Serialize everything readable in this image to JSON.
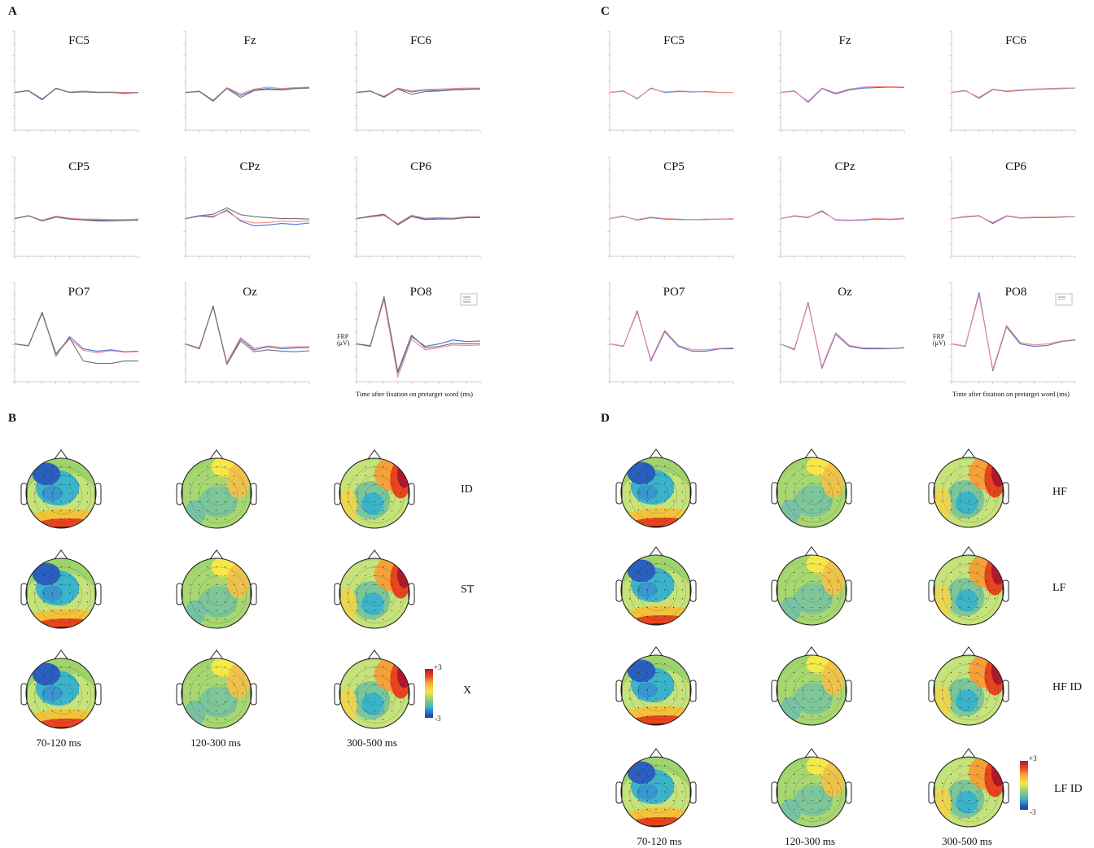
{
  "panels": {
    "A": {
      "label": "A",
      "electrodes": [
        "FC5",
        "Fz",
        "FC6",
        "CP5",
        "CPz",
        "CP6",
        "PO7",
        "Oz",
        "PO8"
      ],
      "y_label": "FRP (μV)",
      "x_label": "Time after fixation on pretarget word (ms)"
    },
    "B": {
      "label": "B",
      "conditions": [
        "ID",
        "ST",
        "X"
      ],
      "time_windows": [
        "70-120 ms",
        "120-300 ms",
        "300-500 ms"
      ],
      "colorbar": {
        "max": "+3",
        "min": "-3"
      }
    },
    "C": {
      "label": "C",
      "electrodes": [
        "FC5",
        "Fz",
        "FC6",
        "CP5",
        "CPz",
        "CP6",
        "PO7",
        "Oz",
        "PO8"
      ],
      "y_label": "FRP (μV)",
      "x_label": "Time after fixation on pretarget word (ms)"
    },
    "D": {
      "label": "D",
      "conditions": [
        "HF",
        "LF",
        "HF ID",
        "LF ID"
      ],
      "time_windows": [
        "70-120 ms",
        "120-300 ms",
        "300-500 ms"
      ],
      "colorbar": {
        "max": "+3",
        "min": "-3"
      }
    }
  },
  "colors": {
    "series_blue": "#4a6fd8",
    "series_red": "#f08a8a",
    "series_gray": "#707070",
    "head_outline": "#222222"
  },
  "chart_data": [
    {
      "type": "line",
      "panel": "A",
      "x": [
        -0.1,
        0.0,
        0.1,
        0.2,
        0.3,
        0.4,
        0.5,
        0.6,
        0.7,
        0.8
      ],
      "xlim": [
        -0.1,
        0.8
      ],
      "series_colors": [
        "#4a6fd8",
        "#f08a8a",
        "#707070"
      ],
      "plots": [
        {
          "title": "FC5",
          "series": [
            {
              "values": [
                0,
                0.3,
                -1.5,
                0.8,
                0,
                0.2,
                0,
                0.1,
                -0.1,
                0
              ]
            },
            {
              "values": [
                0,
                0.3,
                -1.3,
                0.7,
                0.1,
                0.3,
                0.1,
                0.1,
                0,
                0
              ]
            },
            {
              "values": [
                0,
                0.4,
                -1.4,
                0.9,
                0,
                0.1,
                0,
                0,
                -0.2,
                0
              ]
            }
          ]
        },
        {
          "title": "Fz",
          "series": [
            {
              "values": [
                0,
                0.2,
                -1.8,
                0.9,
                -0.6,
                0.5,
                0.8,
                0.6,
                0.9,
                1
              ]
            },
            {
              "values": [
                0,
                0.3,
                -1.6,
                1,
                -0.3,
                0.7,
                1.1,
                0.8,
                1,
                1.1
              ]
            },
            {
              "values": [
                0,
                0.2,
                -1.7,
                0.8,
                -1.0,
                0.4,
                0.6,
                0.5,
                0.8,
                0.9
              ]
            }
          ]
        },
        {
          "title": "FC6",
          "series": [
            {
              "values": [
                0,
                0.3,
                -1.0,
                0.8,
                0.1,
                0.5,
                0.4,
                0.6,
                0.7,
                0.8
              ]
            },
            {
              "values": [
                0,
                0.2,
                -0.8,
                0.9,
                0.3,
                0.6,
                0.7,
                0.8,
                0.9,
                0.9
              ]
            },
            {
              "values": [
                0,
                0.3,
                -0.9,
                0.7,
                -0.4,
                0.2,
                0.3,
                0.5,
                0.6,
                0.7
              ]
            }
          ]
        },
        {
          "title": "CP5",
          "series": [
            {
              "values": [
                0,
                0.6,
                -0.4,
                0.4,
                0,
                -0.2,
                -0.3,
                -0.4,
                -0.3,
                -0.2
              ]
            },
            {
              "values": [
                0,
                0.5,
                -0.3,
                0.5,
                0.1,
                -0.1,
                -0.1,
                -0.2,
                -0.2,
                -0.1
              ]
            },
            {
              "values": [
                0,
                0.6,
                -0.5,
                0.3,
                -0.1,
                -0.3,
                -0.5,
                -0.5,
                -0.4,
                -0.3
              ]
            }
          ]
        },
        {
          "title": "CPz",
          "series": [
            {
              "values": [
                0,
                0.5,
                0.3,
                1.8,
                -0.5,
                -1.5,
                -1.3,
                -1.0,
                -1.2,
                -0.9
              ]
            },
            {
              "values": [
                0,
                0.6,
                0.5,
                1.5,
                -0.3,
                -0.9,
                -0.8,
                -0.5,
                -0.6,
                -0.5
              ]
            },
            {
              "values": [
                0,
                0.6,
                0.9,
                2.2,
                0.8,
                0.4,
                0.2,
                0.0,
                0.0,
                -0.1
              ]
            }
          ]
        },
        {
          "title": "CP6",
          "series": [
            {
              "values": [
                0,
                0.4,
                0.8,
                -1.2,
                0.6,
                -0.1,
                0.1,
                0,
                0.3,
                0.3
              ]
            },
            {
              "values": [
                0,
                0.3,
                0.6,
                -1.0,
                0.7,
                0.1,
                0.2,
                0.1,
                0.4,
                0.4
              ]
            },
            {
              "values": [
                0,
                0.5,
                0.9,
                -1.3,
                0.4,
                -0.2,
                -0.1,
                -0.1,
                0.2,
                0.2
              ]
            }
          ]
        },
        {
          "title": "PO7",
          "series": [
            {
              "values": [
                0,
                -0.4,
                6.5,
                -2.5,
                1.5,
                -1.0,
                -1.5,
                -1.2,
                -1.6,
                -1.5
              ]
            },
            {
              "values": [
                0,
                -0.3,
                6.2,
                -2.2,
                1.0,
                -1.3,
                -1.8,
                -1.4,
                -1.7,
                -1.6
              ]
            },
            {
              "values": [
                0,
                -0.4,
                6.4,
                -2.0,
                1.2,
                -3.5,
                -4.0,
                -4.0,
                -3.5,
                -3.5
              ]
            }
          ]
        },
        {
          "title": "Oz",
          "series": [
            {
              "values": [
                0,
                -1.0,
                7.8,
                -4.0,
                1.0,
                -1.2,
                -0.6,
                -1.0,
                -0.8,
                -0.8
              ]
            },
            {
              "values": [
                0,
                -0.8,
                7.6,
                -3.8,
                1.3,
                -0.9,
                -0.4,
                -0.7,
                -0.6,
                -0.5
              ]
            },
            {
              "values": [
                0,
                -1.0,
                7.7,
                -4.2,
                0.6,
                -1.6,
                -1.2,
                -1.5,
                -1.6,
                -1.4
              ]
            }
          ]
        },
        {
          "title": "PO8",
          "series": [
            {
              "values": [
                0,
                -0.5,
                9.5,
                -6.0,
                1.5,
                -0.5,
                0.0,
                0.8,
                0.5,
                0.6
              ]
            },
            {
              "values": [
                0,
                -0.3,
                9.0,
                -6.8,
                1.0,
                -1.2,
                -0.8,
                -0.2,
                -0.3,
                -0.2
              ]
            },
            {
              "values": [
                0,
                -0.4,
                9.7,
                -5.6,
                1.8,
                -0.8,
                -0.5,
                0.1,
                0.0,
                0.1
              ]
            }
          ]
        }
      ]
    },
    {
      "type": "line",
      "panel": "C",
      "x": [
        -0.1,
        0.0,
        0.1,
        0.2,
        0.3,
        0.4,
        0.5,
        0.6,
        0.7,
        0.8
      ],
      "xlim": [
        -0.1,
        0.8
      ],
      "series_colors": [
        "#4a6fd8",
        "#f08a8a"
      ],
      "plots": [
        {
          "title": "FC5",
          "series": [
            {
              "values": [
                0,
                0.3,
                -1.3,
                0.9,
                0,
                0.2,
                0.1,
                0.2,
                0,
                0
              ]
            },
            {
              "values": [
                0,
                0.2,
                -1.2,
                0.8,
                0.1,
                0.3,
                0.2,
                0.1,
                0,
                0
              ]
            }
          ]
        },
        {
          "title": "Fz",
          "series": [
            {
              "values": [
                0,
                0.3,
                -2.0,
                0.8,
                -0.3,
                0.5,
                0.9,
                1.0,
                1.1,
                1.0
              ]
            },
            {
              "values": [
                0,
                0.2,
                -1.8,
                0.9,
                -0.1,
                0.7,
                1.1,
                1.2,
                1.2,
                1.1
              ]
            }
          ]
        },
        {
          "title": "FC6",
          "series": [
            {
              "values": [
                0,
                0.4,
                -1.2,
                0.6,
                0.2,
                0.4,
                0.6,
                0.7,
                0.8,
                0.9
              ]
            },
            {
              "values": [
                0,
                0.3,
                -1.0,
                0.7,
                0.3,
                0.5,
                0.7,
                0.8,
                0.9,
                0.9
              ]
            }
          ]
        },
        {
          "title": "CP5",
          "series": [
            {
              "values": [
                0,
                0.5,
                -0.3,
                0.2,
                -0.1,
                -0.2,
                -0.2,
                -0.2,
                -0.1,
                -0.1
              ]
            },
            {
              "values": [
                0,
                0.4,
                -0.2,
                0.3,
                0,
                -0.1,
                -0.2,
                -0.1,
                -0.1,
                0
              ]
            }
          ]
        },
        {
          "title": "CPz",
          "series": [
            {
              "values": [
                0,
                0.5,
                0.2,
                1.6,
                -0.3,
                -0.4,
                -0.3,
                -0.1,
                -0.2,
                0
              ]
            },
            {
              "values": [
                0,
                0.6,
                0.3,
                1.4,
                -0.2,
                -0.3,
                -0.2,
                0,
                -0.1,
                0.1
              ]
            }
          ]
        },
        {
          "title": "CP6",
          "series": [
            {
              "values": [
                0,
                0.4,
                0.6,
                -1.0,
                0.5,
                0.1,
                0.2,
                0.2,
                0.3,
                0.4
              ]
            },
            {
              "values": [
                0,
                0.3,
                0.5,
                -0.8,
                0.6,
                0.2,
                0.3,
                0.3,
                0.4,
                0.4
              ]
            }
          ]
        },
        {
          "title": "PO7",
          "series": [
            {
              "values": [
                0,
                -0.5,
                6.8,
                -3.5,
                2.5,
                -0.5,
                -1.5,
                -1.5,
                -1.0,
                -1.0
              ]
            },
            {
              "values": [
                0,
                -0.4,
                6.5,
                -3.2,
                2.8,
                -0.3,
                -1.2,
                -1.2,
                -0.9,
                -0.8
              ]
            }
          ]
        },
        {
          "title": "Oz",
          "series": [
            {
              "values": [
                0,
                -1.2,
                8.5,
                -5.0,
                2.0,
                -0.5,
                -1.0,
                -1.0,
                -1.0,
                -0.8
              ]
            },
            {
              "values": [
                0,
                -1.0,
                8.2,
                -4.7,
                2.3,
                -0.3,
                -0.8,
                -0.8,
                -0.9,
                -0.7
              ]
            }
          ]
        },
        {
          "title": "PO8",
          "series": [
            {
              "values": [
                0,
                -0.5,
                10.5,
                -5.5,
                3.5,
                0.0,
                -0.5,
                -0.3,
                0.5,
                0.8
              ]
            },
            {
              "values": [
                0,
                -0.4,
                10.0,
                -5.2,
                3.8,
                0.3,
                -0.2,
                0.0,
                0.6,
                0.9
              ]
            }
          ]
        }
      ]
    }
  ]
}
